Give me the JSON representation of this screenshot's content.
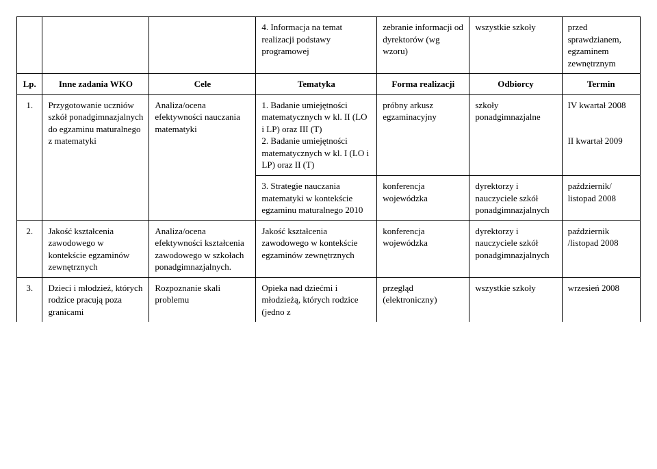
{
  "top_row": {
    "c3": "4. Informacja na temat realizacji podstawy programowej",
    "c4": "zebranie informacji od dyrektorów (wg wzoru)",
    "c5": "wszystkie szkoły",
    "c6": "przed sprawdzianem, egzaminem zewnętrznym"
  },
  "header": {
    "lp": "Lp.",
    "h1": "Inne zadania WKO",
    "h2": "Cele",
    "h3": "Tematyka",
    "h4": "Forma realizacji",
    "h5": "Odbiorcy",
    "h6": "Termin"
  },
  "row1a": {
    "lp": "1.",
    "c1": "Przygotowanie uczniów szkół ponadgimnazjalnych do egzaminu maturalnego z matematyki",
    "c2": "Analiza/ocena efektywności nauczania matematyki",
    "c3": "1. Badanie umiejętności matematycznych w kl. II (LO i  LP) oraz III (T)\n2. Badanie umiejętności matematycznych  w kl. I (LO i LP) oraz II (T)",
    "c4": "próbny arkusz egzaminacyjny",
    "c5": "szkoły ponadgimnazjalne",
    "c6": "IV kwartał 2008\n\n\nII kwartał 2009"
  },
  "row1b": {
    "c3": "3. Strategie nauczania matematyki w kontekście egzaminu maturalnego 2010",
    "c4": "konferencja wojewódzka",
    "c5": "dyrektorzy i nauczyciele szkół ponadgimnazjalnych",
    "c6": "październik/ listopad 2008"
  },
  "row2": {
    "lp": "2.",
    "c1": "Jakość kształcenia zawodowego w kontekście egzaminów zewnętrznych",
    "c2": "Analiza/ocena efektywności kształcenia zawodowego w szkołach ponadgimnazjalnych.",
    "c3": "Jakość kształcenia zawodowego  w kontekście egzaminów zewnętrznych",
    "c4": "konferencja wojewódzka",
    "c5": "dyrektorzy i nauczyciele szkół ponadgimnazjalnych",
    "c6": "październik /listopad 2008"
  },
  "row3": {
    "lp": "3.",
    "c1": "Dzieci i młodzież, których rodzice pracują poza granicami",
    "c2": "Rozpoznanie skali problemu",
    "c3": "Opieka nad dziećmi  i młodzieżą, których rodzice (jedno  z",
    "c4": "przegląd (elektroniczny)",
    "c5": "wszystkie szkoły",
    "c6": "wrzesień 2008"
  }
}
